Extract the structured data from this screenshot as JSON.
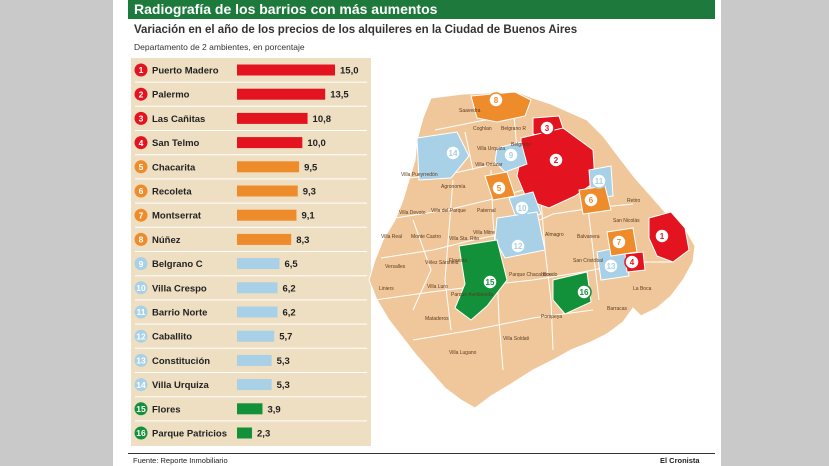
{
  "header": {
    "title": "Radiografía de los barrios con más aumentos",
    "subtitle": "Variación en el año de los precios de los alquileres en la Ciudad de Buenos Aires",
    "unit_note": "Departamento de 2 ambientes, en porcentaje"
  },
  "footer": {
    "source": "Fuente: Reporte Inmobiliario",
    "brand": "El Cronista"
  },
  "colors": {
    "header_bg": "#1e7a3c",
    "panel_bg": "#eedfc3",
    "red": "#e3141f",
    "orange": "#ee8c2c",
    "light_blue": "#a8d0e6",
    "green": "#12913a",
    "map_base": "#f0c79a"
  },
  "chart_data": {
    "type": "bar",
    "orientation": "horizontal",
    "title": "Radiografía de los barrios con más aumentos",
    "subtitle": "Variación en el año de los precios de los alquileres en la Ciudad de Buenos Aires",
    "xlabel": "",
    "ylabel": "",
    "xlim": [
      0,
      15
    ],
    "categories": [
      "Puerto Madero",
      "Palermo",
      "Las Cañitas",
      "San Telmo",
      "Chacarita",
      "Recoleta",
      "Montserrat",
      "Núñez",
      "Belgrano C",
      "Villa Crespo",
      "Barrio Norte",
      "Caballito",
      "Constitución",
      "Villa Urquiza",
      "Flores",
      "Parque Patricios"
    ],
    "ranks": [
      "1",
      "2",
      "3",
      "4",
      "5",
      "6",
      "7",
      "8",
      "9",
      "10",
      "11",
      "12",
      "13",
      "14",
      "15",
      "16"
    ],
    "values": [
      15.0,
      13.5,
      10.8,
      10.0,
      9.5,
      9.3,
      9.1,
      8.3,
      6.5,
      6.2,
      6.2,
      5.7,
      5.3,
      5.3,
      3.9,
      2.3
    ],
    "value_labels": [
      "15,0",
      "13,5",
      "10,8",
      "10,0",
      "9,5",
      "9,3",
      "9,1",
      "8,3",
      "6,5",
      "6,2",
      "6,2",
      "5,7",
      "5,3",
      "5,3",
      "3,9",
      "2,3"
    ],
    "groups": [
      "red",
      "red",
      "red",
      "red",
      "orange",
      "orange",
      "orange",
      "orange",
      "light_blue",
      "light_blue",
      "light_blue",
      "light_blue",
      "light_blue",
      "light_blue",
      "green",
      "green"
    ]
  },
  "map": {
    "labels": [
      "Saavedra",
      "Coghlan",
      "Belgrano R",
      "Belgrano",
      "Villa Urquiza",
      "Villa Pueyrredón",
      "Villa Ortúzar",
      "Agronomía",
      "Paternal",
      "Villa Devoto",
      "Villa del Parque",
      "Villa Real",
      "Monte Castro",
      "Villa Sta. Rita",
      "Villa Mitre",
      "Versalles",
      "Vélez Sársfield",
      "Floresta",
      "Liniers",
      "Villa Luro",
      "Mataderos",
      "Parque Avellaneda",
      "Parque Chacabuco",
      "Boedo",
      "Almagro",
      "Balvanera",
      "San Nicolás",
      "Retiro",
      "San Cristóbal",
      "Pompeya",
      "Barracas",
      "La Boca",
      "Villa Lugano",
      "Villa Soldati"
    ],
    "markers": [
      "1",
      "2",
      "3",
      "4",
      "5",
      "6",
      "7",
      "8",
      "9",
      "10",
      "11",
      "12",
      "13",
      "14",
      "15",
      "16"
    ]
  }
}
